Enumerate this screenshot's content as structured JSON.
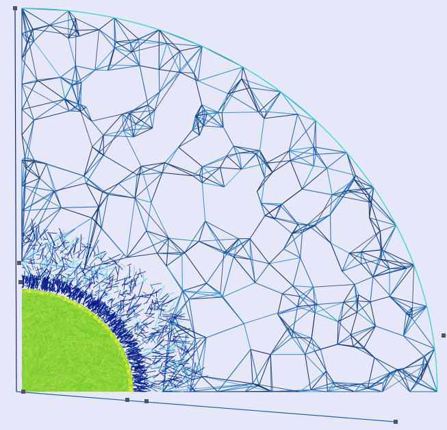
{
  "viewer": {
    "background_color": "#e6e8f9",
    "colors": {
      "outer_boundary": "#3fd6c8",
      "coarse_light": "#2a8ed6",
      "coarse_mid": "#1d5eb0",
      "coarse_dark": "#0e2a66",
      "interface_light": "#5fd0e8",
      "interface_dark": "#0a1d8c",
      "core_fill": "#8ed13a",
      "core_line": "#6fcc1c",
      "core_edge": "#e8f038",
      "node": "#4c5660"
    }
  }
}
